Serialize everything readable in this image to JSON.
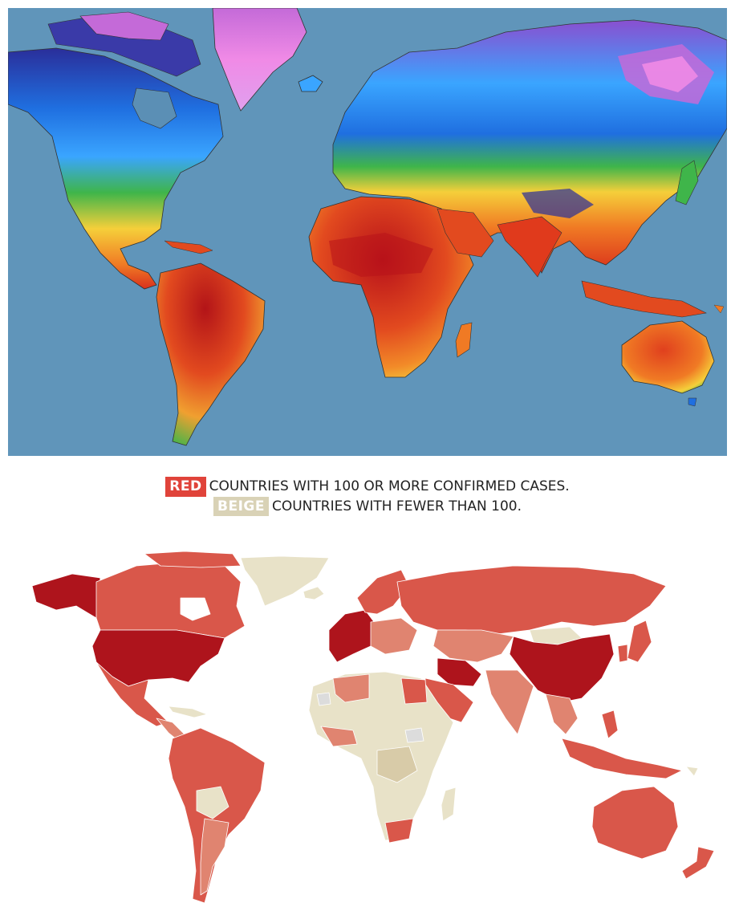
{
  "temperature_map": {
    "colors": {
      "ocean": "#5b8fb5",
      "hot": "#c8201a",
      "warm": "#f07a24",
      "mild": "#f5cf3a",
      "temperate": "#3fb54a",
      "cool": "#1f6fe0",
      "cold": "#2a2e9a",
      "frigid": "#f08ae6"
    }
  },
  "legend": {
    "red_tag": "RED",
    "red_text": "COUNTRIES WITH 100 OR MORE CONFIRMED CASES.",
    "beige_tag": "BEIGE",
    "beige_text": "COUNTRIES WITH FEWER THAN 100."
  },
  "cases_map": {
    "colors": {
      "dark_red": "#ae141c",
      "red": "#d9574a",
      "light_red": "#e08470",
      "beige": "#e8e2c8",
      "no_data": "#dcdcdc"
    }
  }
}
